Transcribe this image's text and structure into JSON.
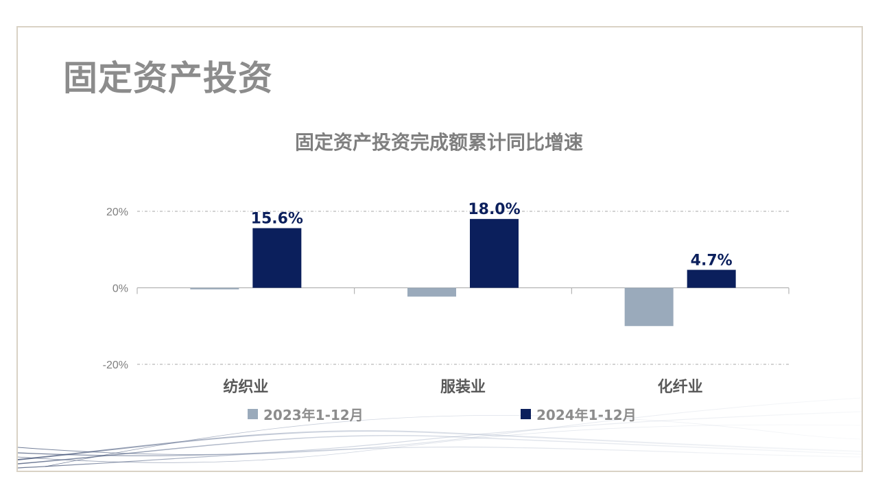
{
  "page": {
    "title": "固定资产投资"
  },
  "chart_data": {
    "type": "bar",
    "title": "固定资产投资完成额累计同比增速",
    "categories": [
      "纺织业",
      "服装业",
      "化纤业"
    ],
    "series": [
      {
        "name": "2023年1-12月",
        "values": [
          -0.4,
          -2.3,
          -10.0
        ],
        "color": "#9aaabb"
      },
      {
        "name": "2024年1-12月",
        "values": [
          15.6,
          18.0,
          4.7
        ],
        "color": "#0b1f5c"
      }
    ],
    "data_labels": [
      "15.6%",
      "18.0%",
      "4.7%"
    ],
    "ylim": [
      -20,
      20
    ],
    "yticks": [
      {
        "value": 20,
        "label": "20%"
      },
      {
        "value": 0,
        "label": "0%"
      },
      {
        "value": -20,
        "label": "-20%"
      }
    ],
    "grid": true,
    "legend_position": "bottom",
    "xlabel": "",
    "ylabel": ""
  }
}
